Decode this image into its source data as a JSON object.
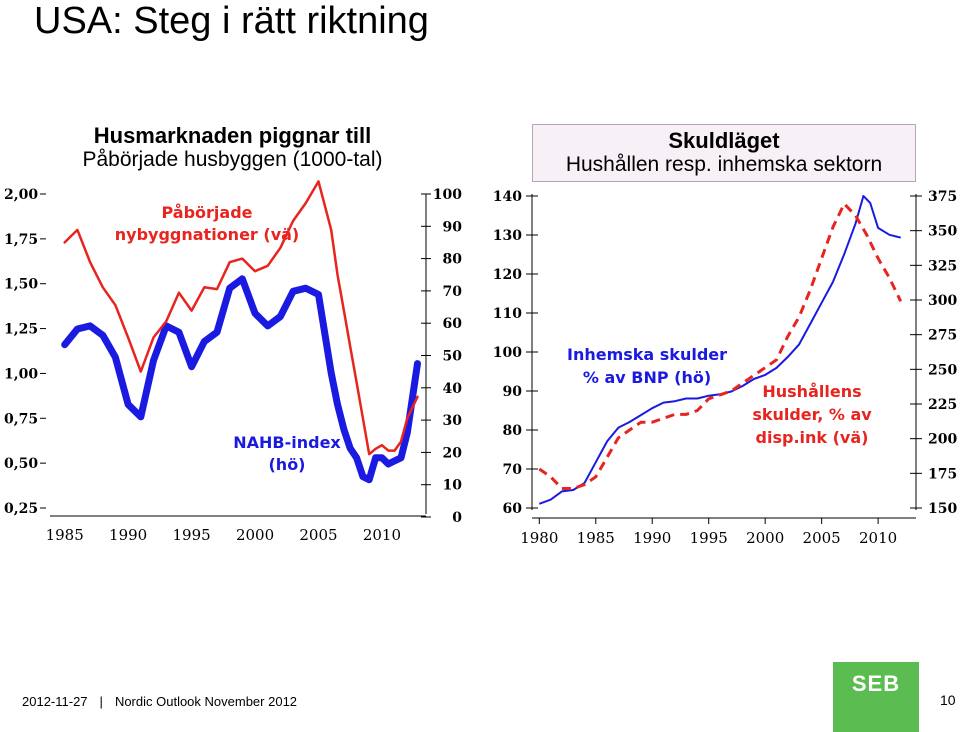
{
  "slide": {
    "title": "USA: Steg i rätt riktning"
  },
  "footer": {
    "date": "2012-11-27",
    "separator": "|",
    "text": "Nordic Outlook November 2012",
    "page": "10",
    "logo": "SEB"
  },
  "colors": {
    "blue": "#1a1ae0",
    "red": "#e8241f",
    "green": "#5bbc51"
  },
  "chart_data": [
    {
      "type": "line",
      "title": "Husmarknaden piggnar till",
      "subtitle": "Påbörjade husbyggen (1000-tal)",
      "x_ticks": [
        "1985",
        "1990",
        "1995",
        "2000",
        "2005",
        "2010"
      ],
      "x_range": [
        1984,
        2013
      ],
      "y_left": {
        "ticks": [
          "2,00",
          "1,75",
          "1,50",
          "1,25",
          "1,00",
          "0,75",
          "0,50",
          "0,25"
        ],
        "range": [
          0.25,
          2.0
        ]
      },
      "y_right": {
        "ticks": [
          "100",
          "90",
          "80",
          "70",
          "60",
          "50",
          "40",
          "30",
          "20",
          "10",
          "0"
        ],
        "range": [
          0,
          100
        ]
      },
      "annotations": {
        "red_label_1": "Påbörjade",
        "red_label_2": "nybyggnationer (vä)",
        "blue_label_1": "NAHB-index",
        "blue_label_2": "(hö)"
      },
      "series": [
        {
          "name": "Påbörjade nybyggnationer (vä)",
          "color": "red",
          "axis": "left",
          "x": [
            1985,
            1986,
            1987,
            1988,
            1989,
            1990,
            1991,
            1992,
            1993,
            1994,
            1995,
            1996,
            1997,
            1998,
            1999,
            2000,
            2001,
            2002,
            2003,
            2004,
            2005,
            2006,
            2006.5,
            2007,
            2007.5,
            2008,
            2008.5,
            2009,
            2009.5,
            2010,
            2010.5,
            2011,
            2011.5,
            2012,
            2012.8
          ],
          "y": [
            1.73,
            1.8,
            1.62,
            1.48,
            1.38,
            1.2,
            1.01,
            1.2,
            1.29,
            1.45,
            1.35,
            1.48,
            1.47,
            1.62,
            1.64,
            1.57,
            1.6,
            1.7,
            1.85,
            1.95,
            2.07,
            1.8,
            1.55,
            1.35,
            1.15,
            0.95,
            0.75,
            0.55,
            0.58,
            0.6,
            0.57,
            0.57,
            0.62,
            0.75,
            0.87
          ]
        },
        {
          "name": "NAHB-index (hö)",
          "color": "blue",
          "axis": "right",
          "x": [
            1985,
            1986,
            1987,
            1988,
            1989,
            1990,
            1991,
            1992,
            1993,
            1994,
            1995,
            1996,
            1997,
            1998,
            1999,
            2000,
            2001,
            2002,
            2003,
            2004,
            2005,
            2006,
            2006.5,
            2007,
            2007.5,
            2008,
            2008.5,
            2009,
            2009.5,
            2010,
            2010.5,
            2011,
            2011.5,
            2012,
            2012.8
          ],
          "y": [
            52,
            57,
            58,
            55,
            48,
            33,
            29,
            47,
            58,
            56,
            45,
            53,
            56,
            70,
            73,
            62,
            58,
            61,
            69,
            70,
            68,
            43,
            33,
            25,
            19,
            16,
            10,
            9,
            16,
            16,
            14,
            15,
            16,
            24,
            46
          ]
        }
      ]
    },
    {
      "type": "line",
      "title": "Skuldläget",
      "subtitle": "Hushållen resp. inhemska sektorn",
      "x_ticks": [
        "1980",
        "1985",
        "1990",
        "1995",
        "2000",
        "2005",
        "2010"
      ],
      "x_range": [
        1979,
        2013
      ],
      "y_left": {
        "ticks": [
          "140",
          "130",
          "120",
          "110",
          "100",
          "90",
          "80",
          "70",
          "60"
        ],
        "range": [
          60,
          140
        ]
      },
      "y_right": {
        "ticks": [
          "375",
          "350",
          "325",
          "300",
          "275",
          "250",
          "225",
          "200",
          "175",
          "150"
        ],
        "range": [
          150,
          375
        ]
      },
      "annotations": {
        "blue_label_1": "Inhemska skulder",
        "blue_label_2": "% av BNP (hö)",
        "red_label_1": "Hushållens",
        "red_label_2": "skulder, % av",
        "red_label_3": "disp.ink (vä)"
      },
      "series": [
        {
          "name": "Inhemska skulder % av BNP (hö)",
          "color": "blue",
          "axis": "right",
          "style": "solid",
          "x": [
            1980,
            1981,
            1982,
            1983,
            1984,
            1985,
            1986,
            1987,
            1988,
            1989,
            1990,
            1991,
            1992,
            1993,
            1994,
            1995,
            1996,
            1997,
            1998,
            1999,
            2000,
            2001,
            2002,
            2003,
            2004,
            2005,
            2006,
            2007,
            2008,
            2008.7,
            2009.3,
            2010,
            2011,
            2012
          ],
          "y": [
            153,
            156,
            162,
            163,
            168,
            183,
            198,
            208,
            212,
            217,
            222,
            226,
            227,
            229,
            229,
            231,
            232,
            234,
            238,
            243,
            246,
            251,
            259,
            268,
            283,
            298,
            313,
            333,
            355,
            375,
            370,
            352,
            347,
            345
          ]
        },
        {
          "name": "Hushållens skulder, % av disp.ink (vä)",
          "color": "red",
          "axis": "left",
          "style": "dashed",
          "x": [
            1980,
            1981,
            1982,
            1983,
            1984,
            1985,
            1986,
            1987,
            1988,
            1989,
            1990,
            1991,
            1992,
            1993,
            1994,
            1995,
            1996,
            1997,
            1998,
            1999,
            2000,
            2001,
            2002,
            2003,
            2004,
            2005,
            2006,
            2007,
            2008,
            2009,
            2010,
            2011,
            2012
          ],
          "y": [
            70,
            68,
            65,
            65,
            66,
            68,
            73,
            78,
            80,
            82,
            82,
            83,
            84,
            84,
            85,
            88,
            89,
            90,
            92,
            94,
            96,
            98,
            104,
            109,
            116,
            124,
            132,
            138,
            135,
            130,
            124,
            119,
            113
          ]
        }
      ]
    }
  ]
}
